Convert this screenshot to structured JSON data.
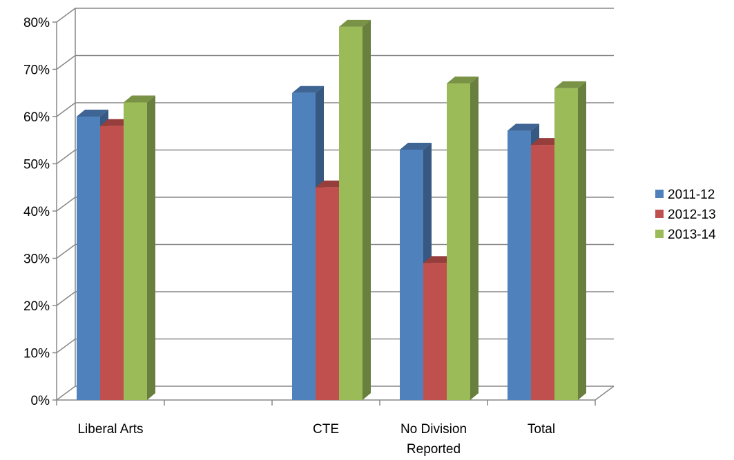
{
  "chart_data": {
    "type": "bar",
    "style": "3d-clustered-column",
    "title": "",
    "xlabel": "",
    "ylabel": "",
    "categories": [
      [
        "Liberal Arts"
      ],
      [
        ""
      ],
      [
        "CTE"
      ],
      [
        "No Division",
        "Reported"
      ],
      [
        "Total"
      ]
    ],
    "series": [
      {
        "name": "2011-12",
        "color": "#4F81BD",
        "values": [
          60,
          null,
          65,
          53,
          57
        ]
      },
      {
        "name": "2012-13",
        "color": "#C0504D",
        "values": [
          58,
          null,
          45,
          29,
          54
        ]
      },
      {
        "name": "2013-14",
        "color": "#9BBB59",
        "values": [
          63,
          null,
          79,
          67,
          66
        ]
      }
    ],
    "ylim": [
      0,
      80
    ],
    "yticks": [
      "0%",
      "10%",
      "20%",
      "30%",
      "40%",
      "50%",
      "60%",
      "70%",
      "80%"
    ],
    "grid": true,
    "legend": "right"
  }
}
